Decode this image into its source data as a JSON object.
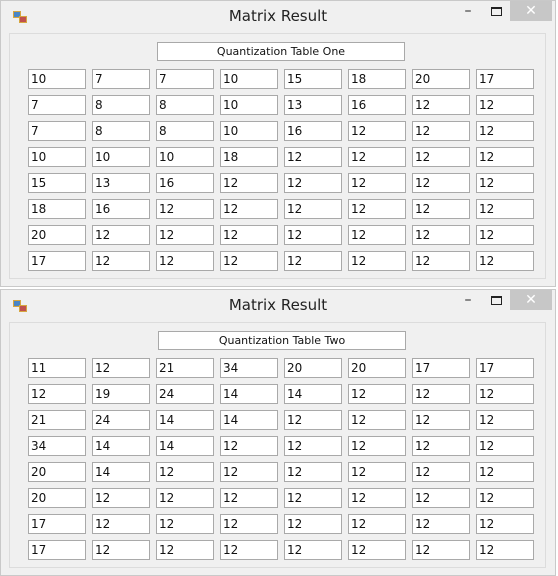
{
  "colors": {
    "window_bg": "#f0f0f0",
    "close_button_bg": "#c7c7c7",
    "field_border": "#a9a9a9"
  },
  "window_one": {
    "title": "Matrix Result",
    "controls": {
      "minimize": "–",
      "close": "✕"
    },
    "table_title": "Quantization Table One",
    "rows": [
      [
        "10",
        "7",
        "7",
        "10",
        "15",
        "18",
        "20",
        "17"
      ],
      [
        "7",
        "8",
        "8",
        "10",
        "13",
        "16",
        "12",
        "12"
      ],
      [
        "7",
        "8",
        "8",
        "10",
        "16",
        "12",
        "12",
        "12"
      ],
      [
        "10",
        "10",
        "10",
        "18",
        "12",
        "12",
        "12",
        "12"
      ],
      [
        "15",
        "13",
        "16",
        "12",
        "12",
        "12",
        "12",
        "12"
      ],
      [
        "18",
        "16",
        "12",
        "12",
        "12",
        "12",
        "12",
        "12"
      ],
      [
        "20",
        "12",
        "12",
        "12",
        "12",
        "12",
        "12",
        "12"
      ],
      [
        "17",
        "12",
        "12",
        "12",
        "12",
        "12",
        "12",
        "12"
      ]
    ]
  },
  "window_two": {
    "title": "Matrix Result",
    "controls": {
      "minimize": "–",
      "close": "✕"
    },
    "table_title": "Quantization Table Two",
    "rows": [
      [
        "11",
        "12",
        "21",
        "34",
        "20",
        "20",
        "17",
        "17"
      ],
      [
        "12",
        "19",
        "24",
        "14",
        "14",
        "12",
        "12",
        "12"
      ],
      [
        "21",
        "24",
        "14",
        "14",
        "12",
        "12",
        "12",
        "12"
      ],
      [
        "34",
        "14",
        "14",
        "12",
        "12",
        "12",
        "12",
        "12"
      ],
      [
        "20",
        "14",
        "12",
        "12",
        "12",
        "12",
        "12",
        "12"
      ],
      [
        "20",
        "12",
        "12",
        "12",
        "12",
        "12",
        "12",
        "12"
      ],
      [
        "17",
        "12",
        "12",
        "12",
        "12",
        "12",
        "12",
        "12"
      ],
      [
        "17",
        "12",
        "12",
        "12",
        "12",
        "12",
        "12",
        "12"
      ]
    ]
  }
}
